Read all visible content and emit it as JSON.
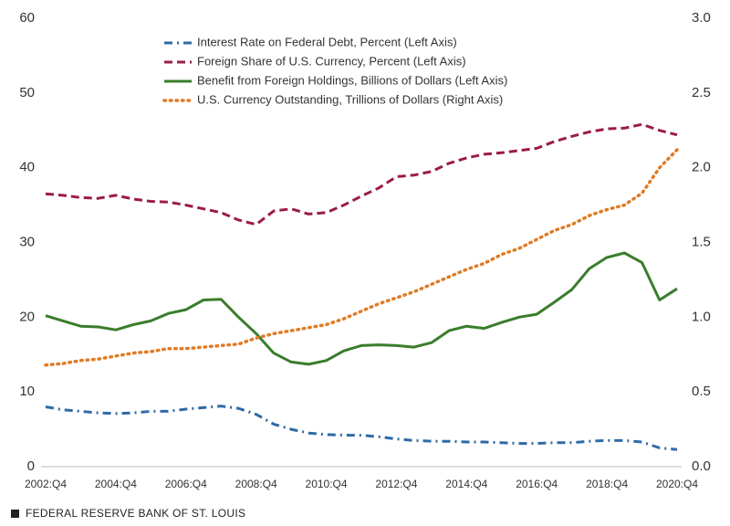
{
  "chart_data": {
    "type": "line",
    "categories": [
      "2002:Q4",
      null,
      null,
      null,
      "2004:Q4",
      null,
      null,
      null,
      "2006:Q4",
      null,
      null,
      null,
      "2008:Q4",
      null,
      null,
      null,
      "2010:Q4",
      null,
      null,
      null,
      "2012:Q4",
      null,
      null,
      null,
      "2014:Q4",
      null,
      null,
      null,
      "2016:Q4",
      null,
      null,
      null,
      "2018:Q4",
      null,
      null,
      null,
      "2020:Q4"
    ],
    "series": [
      {
        "name": "Interest Rate on Federal Debt, Percent (Left Axis)",
        "color": "#2e6aa6",
        "dash": "dashdot",
        "values": [
          8.0,
          7.6,
          7.4,
          7.2,
          7.1,
          7.2,
          7.4,
          7.4,
          7.7,
          7.9,
          8.1,
          7.8,
          7.0,
          5.7,
          5.0,
          4.5,
          4.3,
          4.2,
          4.2,
          4.0,
          3.7,
          3.5,
          3.4,
          3.4,
          3.3,
          3.3,
          3.2,
          3.1,
          3.1,
          3.2,
          3.2,
          3.4,
          3.5,
          3.5,
          3.3,
          2.5,
          2.3
        ]
      },
      {
        "name": "Foreign Share of U.S. Currency, Percent (Left Axis)",
        "color": "#9b1b4a",
        "dash": "dashed",
        "values": [
          36.5,
          36.3,
          36.0,
          35.9,
          36.3,
          35.8,
          35.5,
          35.4,
          35.0,
          34.5,
          34.0,
          33.0,
          32.4,
          34.2,
          34.5,
          33.8,
          34.0,
          35.0,
          36.2,
          37.3,
          38.8,
          39.0,
          39.5,
          40.6,
          41.3,
          41.8,
          42.0,
          42.3,
          42.6,
          43.5,
          44.2,
          44.8,
          45.2,
          45.3,
          45.8,
          45.0,
          44.4
        ]
      },
      {
        "name": "Benefit from Foreign Holdings, Billions of Dollars (Left Axis)",
        "color": "#3a7d2c",
        "dash": "solid",
        "values": [
          20.2,
          19.5,
          18.8,
          18.7,
          18.3,
          19.0,
          19.5,
          20.5,
          21.0,
          22.3,
          22.4,
          20.0,
          17.8,
          15.2,
          14.0,
          13.7,
          14.2,
          15.5,
          16.2,
          16.3,
          16.2,
          16.0,
          16.6,
          18.2,
          18.8,
          18.5,
          19.3,
          20.0,
          20.4,
          22.0,
          23.7,
          26.5,
          28.0,
          28.6,
          27.3,
          22.3,
          23.8
        ]
      },
      {
        "name": "U.S. Currency Outstanding, Trillions of Dollars (Right Axis)",
        "color": "#e07b24",
        "dash": "dotted",
        "axis": "y2",
        "values": [
          0.68,
          0.69,
          0.71,
          0.72,
          0.74,
          0.76,
          0.77,
          0.79,
          0.79,
          0.8,
          0.81,
          0.82,
          0.86,
          0.89,
          0.91,
          0.93,
          0.95,
          0.99,
          1.04,
          1.09,
          1.13,
          1.17,
          1.22,
          1.27,
          1.32,
          1.36,
          1.42,
          1.46,
          1.52,
          1.58,
          1.62,
          1.68,
          1.72,
          1.75,
          1.83,
          2.0,
          2.12
        ]
      }
    ],
    "ylim": [
      0,
      60
    ],
    "yticks": [
      0,
      10,
      20,
      30,
      40,
      50,
      60
    ],
    "y2lim": [
      0,
      3.0
    ],
    "y2ticks": [
      {
        "value": 0,
        "label": "0.0"
      },
      0.5,
      {
        "value": 1,
        "label": "1.0"
      },
      1.5,
      {
        "value": 2,
        "label": "2.0"
      },
      2.5,
      {
        "value": 3,
        "label": "3.0"
      }
    ],
    "legend": "top",
    "source": "FEDERAL RESERVE BANK OF ST. LOUIS"
  }
}
